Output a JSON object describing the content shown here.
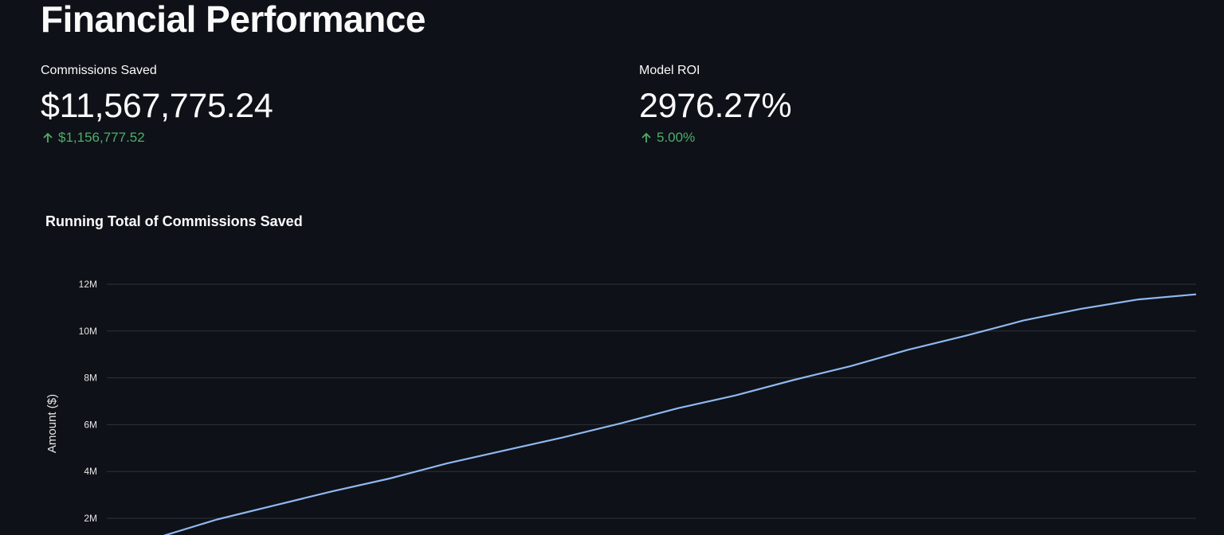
{
  "header": {
    "title": "Financial Performance"
  },
  "metrics": [
    {
      "label": "Commissions Saved",
      "value": "$11,567,775.24",
      "delta": "$1,156,777.52",
      "delta_direction": "up"
    },
    {
      "label": "Model ROI",
      "value": "2976.27%",
      "delta": "5.00%",
      "delta_direction": "up"
    }
  ],
  "colors": {
    "background": "#0e1117",
    "delta_positive": "#4caf6a",
    "line": "#8fb8ee",
    "grid": "#2e323b"
  },
  "icons": {
    "delta": "arrow-up-icon"
  },
  "chart_data": {
    "type": "line",
    "title": "Running Total of Commissions Saved",
    "ylabel": "Amount ($)",
    "xlabel": "",
    "ylim": [
      0,
      12000000
    ],
    "y_ticks": [
      2000000,
      4000000,
      6000000,
      8000000,
      10000000,
      12000000
    ],
    "y_tick_labels": [
      "2M",
      "4M",
      "6M",
      "8M",
      "10M",
      "12M"
    ],
    "grid": true,
    "series": [
      {
        "values": [
          1200000,
          1950000,
          2550000,
          3150000,
          3700000,
          4350000,
          4900000,
          5450000,
          6050000,
          6700000,
          7250000,
          7900000,
          8500000,
          9200000,
          9800000,
          10450000,
          10950000,
          11350000,
          11567775.24
        ]
      }
    ]
  }
}
